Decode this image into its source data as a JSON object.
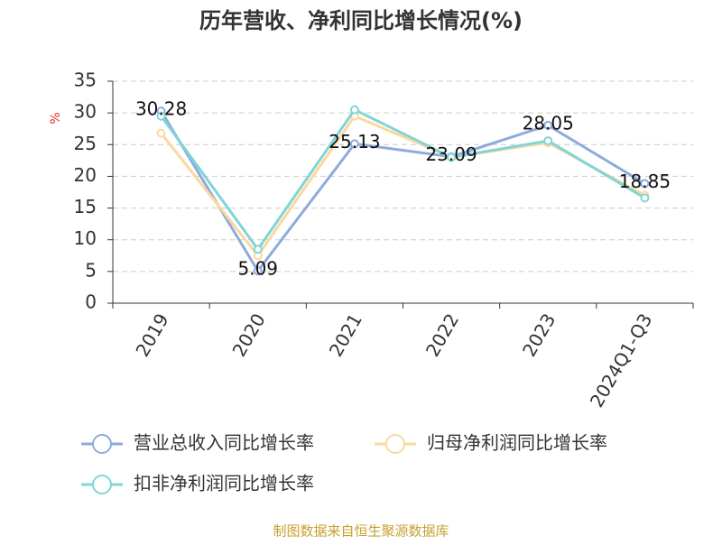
{
  "chart_data": {
    "type": "line",
    "title": "历年营收、净利同比增长情况(%)",
    "y_label": "%",
    "categories": [
      "2019",
      "2020",
      "2021",
      "2022",
      "2023",
      "2024Q1-Q3"
    ],
    "series": [
      {
        "name": "营业总收入同比增长率",
        "color": "#8eabdc",
        "values": [
          30.28,
          5.09,
          25.13,
          23.09,
          28.05,
          18.85
        ],
        "show_labels": true
      },
      {
        "name": "归母净利润同比增长率",
        "color": "#fbd89e",
        "values": [
          26.8,
          7.5,
          29.5,
          23.0,
          25.3,
          17.0
        ],
        "show_labels": false
      },
      {
        "name": "扣非净利润同比增长率",
        "color": "#80d5d6",
        "values": [
          29.5,
          8.5,
          30.5,
          23.0,
          25.6,
          16.6
        ],
        "show_labels": false
      }
    ],
    "ylim": [
      0,
      35
    ],
    "yticks": [
      0,
      5,
      10,
      15,
      20,
      25,
      30,
      35
    ],
    "grid": true,
    "source": "制图数据来自恒生聚源数据库"
  }
}
